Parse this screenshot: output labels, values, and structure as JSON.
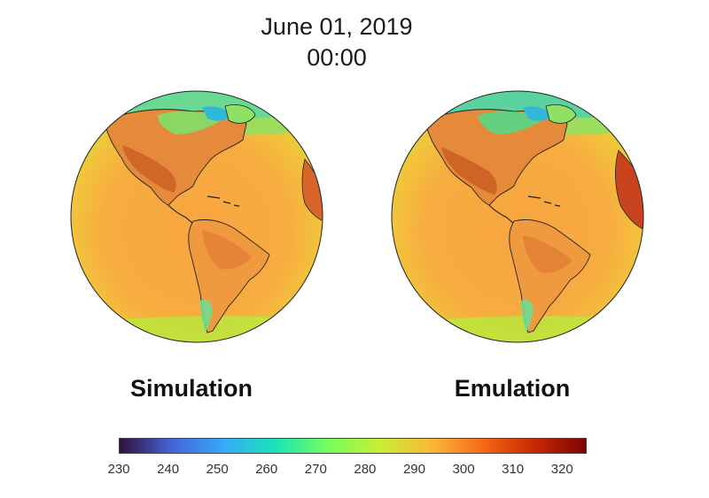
{
  "header": {
    "date": "June 01, 2019",
    "time": "00:00"
  },
  "panels": [
    {
      "label": "Simulation"
    },
    {
      "label": "Emulation"
    }
  ],
  "colorbar": {
    "min": 230,
    "max": 325,
    "ticks": [
      "230",
      "240",
      "250",
      "260",
      "270",
      "280",
      "290",
      "300",
      "310",
      "320"
    ],
    "tick_values": [
      230,
      240,
      250,
      260,
      270,
      280,
      290,
      300,
      310,
      320
    ],
    "colormap": [
      "#30123b",
      "#4662d7",
      "#36aaf9",
      "#1ae4b6",
      "#72fe5e",
      "#c7ef34",
      "#fbb938",
      "#f56918",
      "#c92903",
      "#7a0403"
    ]
  }
}
